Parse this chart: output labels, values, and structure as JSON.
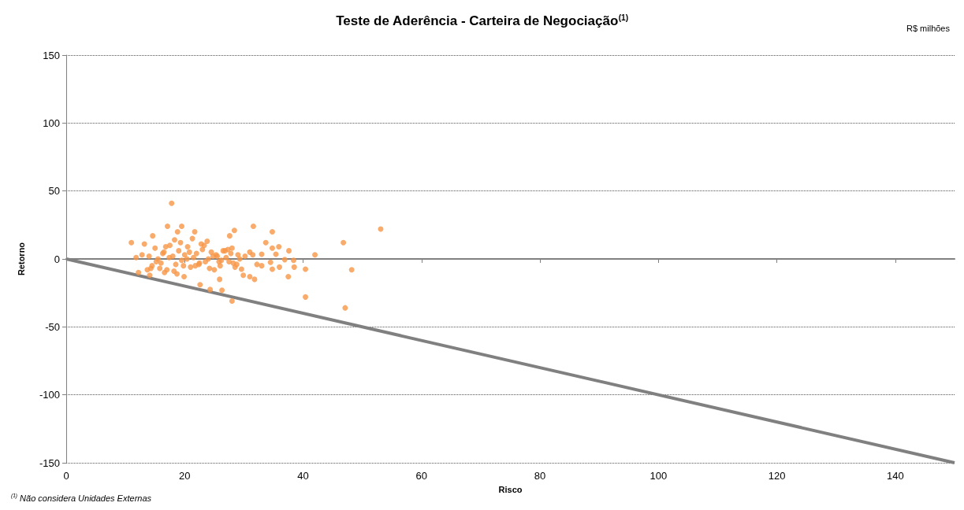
{
  "chart_data": {
    "type": "scatter",
    "title": "Teste de Aderência - Carteira de Negociação$^{(1)}$",
    "xlabel": "Risco",
    "ylabel": "Retorno",
    "annotations": [
      "R$ milhões",
      "$^{(1)}$ Não considera Unidades Externas"
    ],
    "xlim": [
      0,
      150
    ],
    "xticks": [
      0,
      20,
      40,
      60,
      80,
      100,
      120,
      140
    ],
    "ylim": [
      -150,
      150
    ],
    "yticks": [
      -150,
      -100,
      -50,
      0,
      50,
      100,
      150
    ],
    "grid": "y",
    "marker": "circle",
    "series": [
      {
        "color": "#f79646",
        "x": [
          11,
          17.8,
          17.1,
          19.5,
          14.6,
          18.8,
          21.7,
          28.4,
          27.6,
          31.6,
          11.8,
          12.2,
          14.1,
          16.6,
          18.7,
          19.9,
          22.6,
          24.3,
          26.3,
          28,
          25.9,
          29.9,
          31,
          31.8,
          12.8,
          13.2,
          34.8,
          33.7,
          34.8,
          35.9,
          37.6,
          31,
          31.5,
          33,
          35.4,
          42,
          46.8,
          53.1,
          48.2,
          40.4,
          40.4,
          37.5,
          34.8,
          36,
          38.5,
          38.4,
          36.9,
          34.5,
          33,
          32.2,
          29.6,
          47.1,
          14,
          14.5,
          15,
          15.5,
          16,
          16.5,
          17,
          17.5,
          18,
          18.5,
          19,
          19.5,
          20,
          20.5,
          21,
          21.5,
          22,
          22.5,
          23,
          23.5,
          24,
          24.5,
          25,
          25.5,
          26,
          26.5,
          27,
          27.5,
          28,
          28.5,
          29,
          15.2,
          16.3,
          17.4,
          18.2,
          19.3,
          20.4,
          21.3,
          22.4,
          23.3,
          24.2,
          25.3,
          26.2,
          27.3,
          28.2,
          29.3,
          14.3,
          16.8,
          19.8,
          22.8,
          25.8,
          27.8,
          18.3,
          21.8,
          24.8,
          26.8,
          13.7,
          15.8,
          20.8,
          23.8,
          28.8,
          30.2
        ],
        "values": [
          12,
          41,
          24,
          24,
          17,
          20,
          20,
          21,
          17,
          24,
          1,
          -10,
          -12,
          -10,
          -11,
          -13,
          -19,
          -22.5,
          -23,
          -31,
          -15,
          -12,
          -13,
          -15,
          3,
          11,
          20,
          12,
          8,
          9,
          6,
          5,
          3,
          3.5,
          3.5,
          3,
          12,
          22,
          -8,
          -7.5,
          -28,
          -13,
          -7.5,
          -6,
          -6,
          -1,
          -0.5,
          -2.5,
          -5,
          -4,
          -7.5,
          -36,
          2,
          -5,
          8,
          0,
          -3,
          5,
          -8,
          10,
          2,
          -4,
          6,
          -1,
          3,
          9,
          -6,
          1,
          4,
          -3,
          7,
          -2,
          0,
          5,
          -8,
          2,
          -5,
          6,
          1,
          -2,
          8,
          -6,
          3,
          -2,
          4,
          1,
          -9,
          12,
          0,
          15,
          -4,
          10,
          -7,
          3,
          -1,
          7,
          -3,
          0,
          -7,
          9,
          -5,
          11,
          -2,
          4,
          14,
          -5,
          2,
          6,
          -8,
          -7,
          5,
          13,
          -4,
          2
        ]
      },
      {
        "type": "line",
        "marker": "none",
        "color": "#808080",
        "x": [
          0,
          150
        ],
        "values": [
          0,
          -150
        ]
      }
    ]
  }
}
